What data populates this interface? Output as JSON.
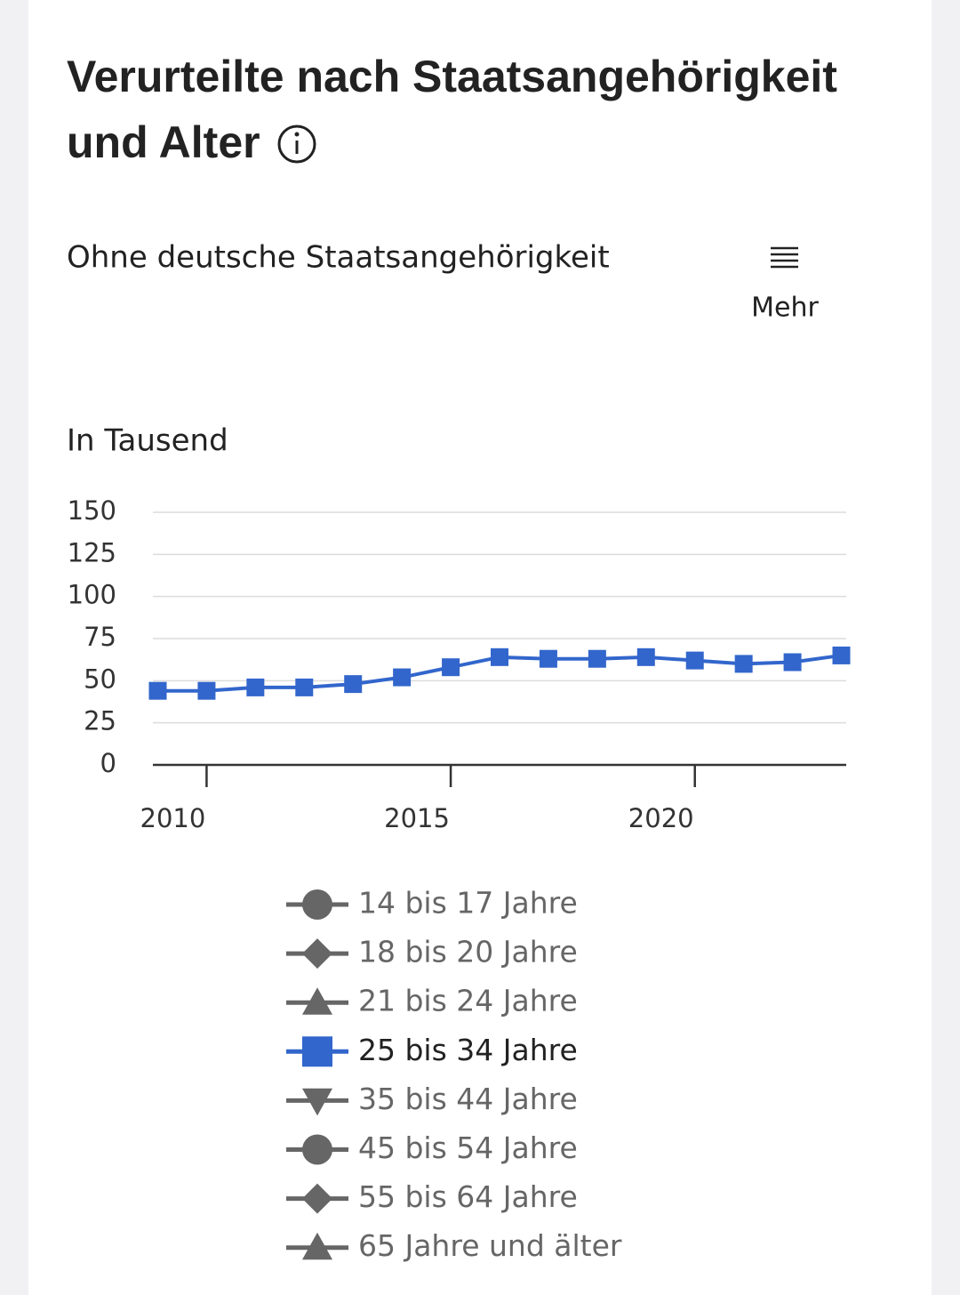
{
  "chart_data": {
    "type": "line",
    "title": [
      "Verurteilte nach Staatsangehörigkeit",
      "und Alter"
    ],
    "subtitle": "Ohne deutsche Staatsangehörigkeit",
    "menu_label": "Mehr",
    "y_label": "In Tausend",
    "x": [
      2009,
      2010,
      2011,
      2012,
      2013,
      2014,
      2015,
      2016,
      2017,
      2018,
      2019,
      2020,
      2021,
      2022,
      2023
    ],
    "series": [
      {
        "name": "25 bis 34 Jahre",
        "color": "#3366cc",
        "values": [
          44,
          44,
          46,
          46,
          48,
          52,
          58,
          64,
          63,
          63,
          64,
          62,
          60,
          61,
          65
        ]
      }
    ],
    "legend": [
      {
        "name": "14 bis 17 Jahre",
        "marker": "circle",
        "visible": false
      },
      {
        "name": "18 bis 20 Jahre",
        "marker": "diamond",
        "visible": false
      },
      {
        "name": "21 bis 24 Jahre",
        "marker": "triangle-up",
        "visible": false
      },
      {
        "name": "25 bis 34 Jahre",
        "marker": "square",
        "visible": true
      },
      {
        "name": "35 bis 44 Jahre",
        "marker": "triangle-down",
        "visible": false
      },
      {
        "name": "45 bis 54 Jahre",
        "marker": "circle",
        "visible": false
      },
      {
        "name": "55 bis 64 Jahre",
        "marker": "diamond",
        "visible": false
      },
      {
        "name": "65 Jahre und älter",
        "marker": "triangle-up",
        "visible": false
      }
    ],
    "hidden_color": "#666666",
    "xlim": [
      2008.9,
      2023.1
    ],
    "xticks": [
      2010,
      2015,
      2020
    ],
    "ylim": [
      0,
      150
    ],
    "yticks": [
      0,
      25,
      50,
      75,
      100,
      125,
      150
    ],
    "grid": true
  }
}
